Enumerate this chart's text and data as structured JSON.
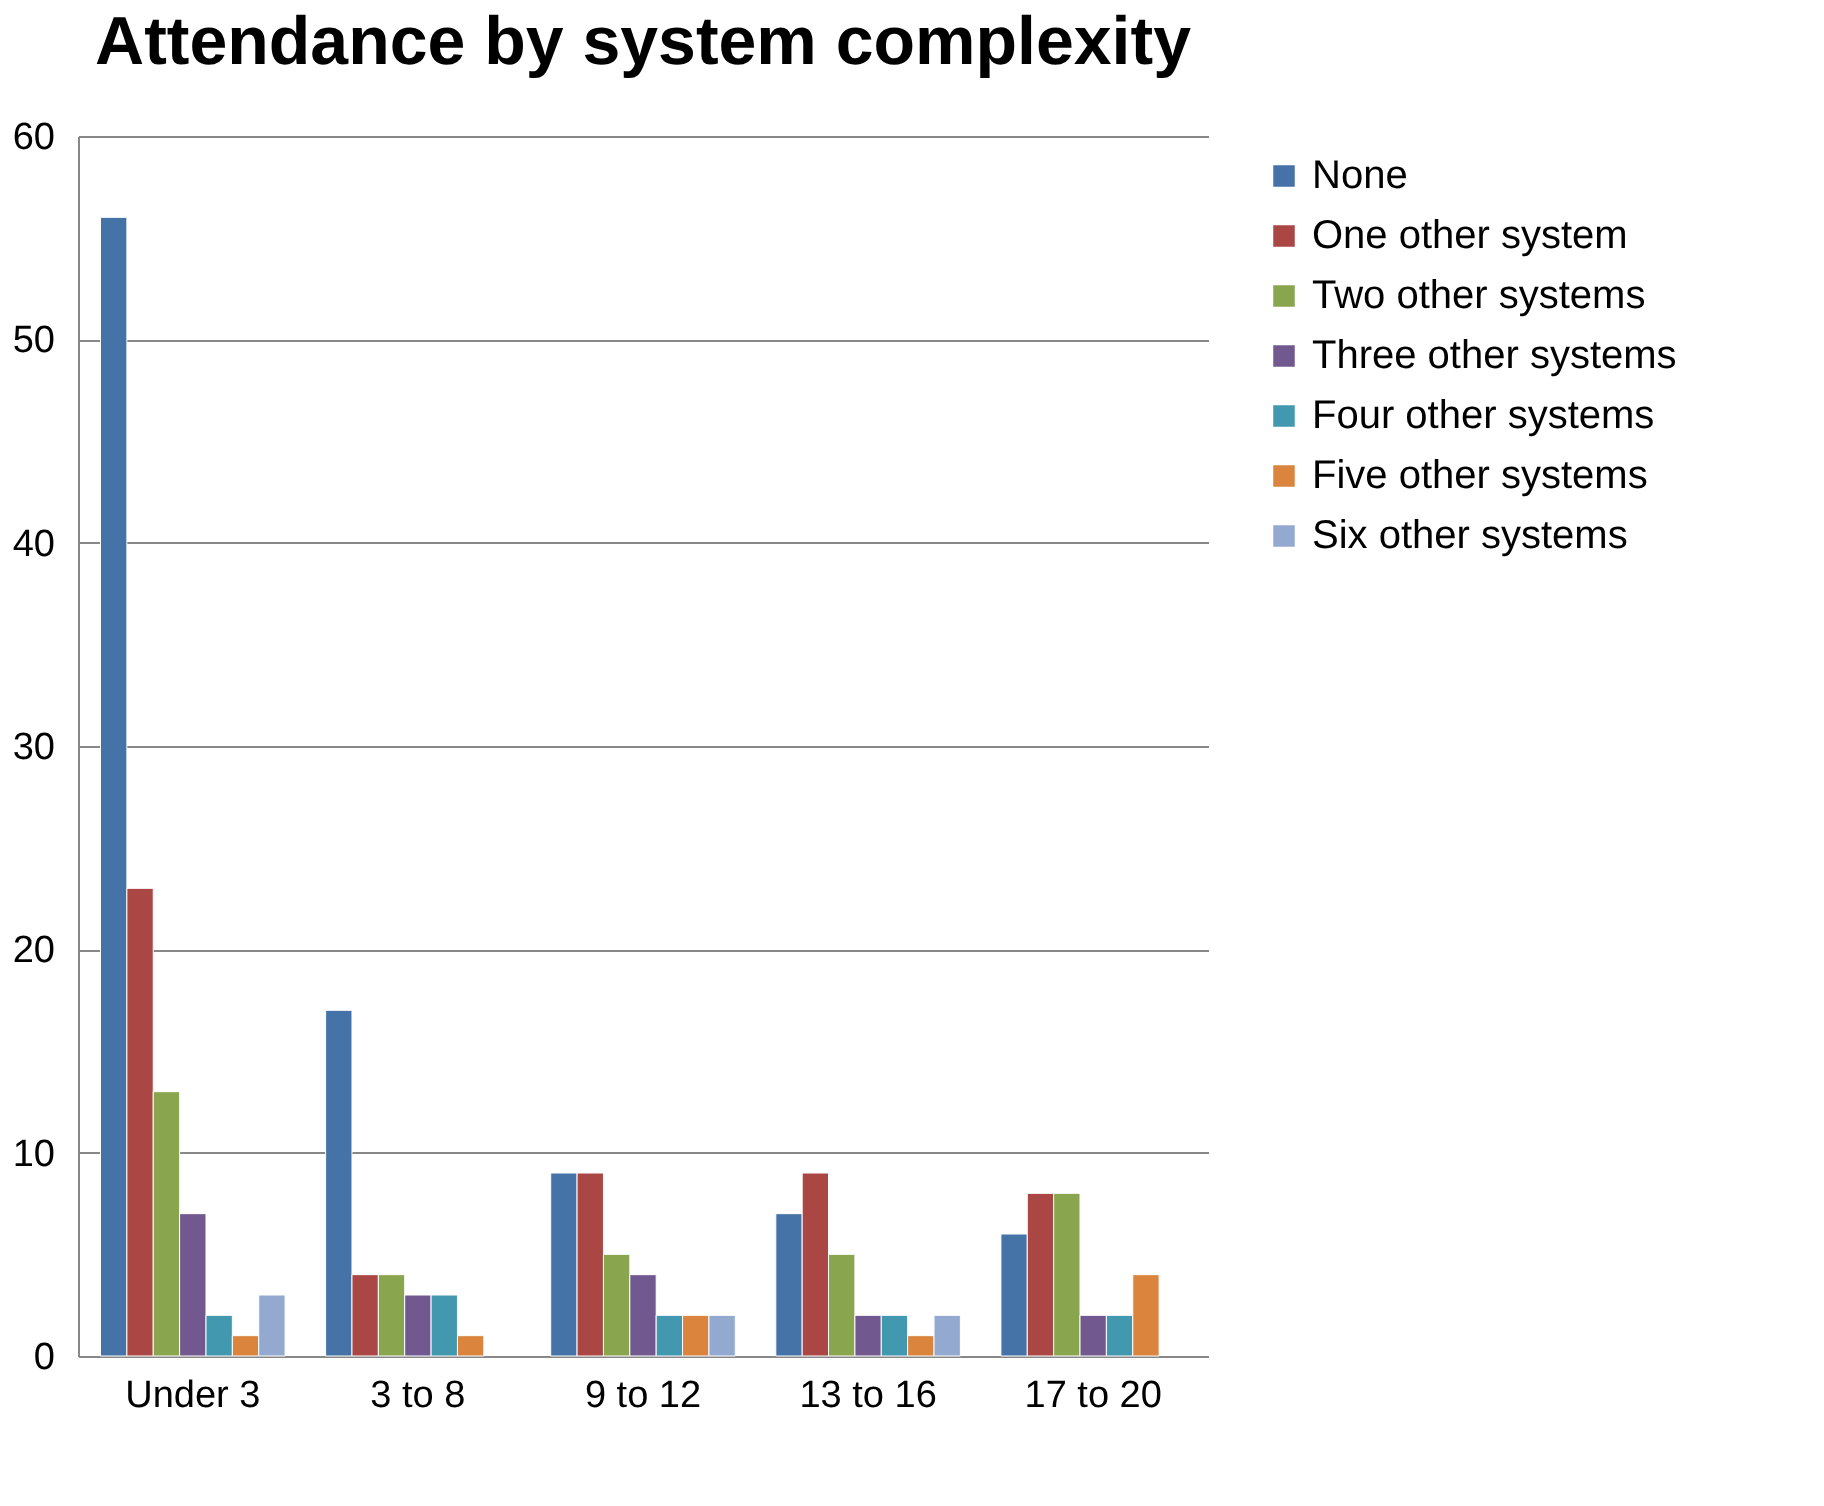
{
  "chart_data": {
    "type": "bar",
    "title": "Attendance by system complexity",
    "categories": [
      "Under 3",
      "3 to 8",
      "9 to 12",
      "13 to 16",
      "17 to 20"
    ],
    "series": [
      {
        "name": "None",
        "color": "#4572a7",
        "values": [
          56,
          17,
          9,
          7,
          6
        ]
      },
      {
        "name": "One other system",
        "color": "#aa4643",
        "values": [
          23,
          4,
          9,
          9,
          8
        ]
      },
      {
        "name": "Two other systems",
        "color": "#89a54e",
        "values": [
          13,
          4,
          5,
          5,
          8
        ]
      },
      {
        "name": "Three other systems",
        "color": "#71588f",
        "values": [
          7,
          3,
          4,
          2,
          2
        ]
      },
      {
        "name": "Four other systems",
        "color": "#4198af",
        "values": [
          2,
          3,
          2,
          2,
          2
        ]
      },
      {
        "name": "Five other systems",
        "color": "#db843d",
        "values": [
          1,
          1,
          2,
          1,
          4
        ]
      },
      {
        "name": "Six other systems",
        "color": "#93a9cf",
        "values": [
          3,
          null,
          2,
          2,
          null
        ]
      }
    ],
    "ylim": [
      0,
      60
    ],
    "yticks": [
      0,
      10,
      20,
      30,
      40,
      50,
      60
    ],
    "grid": "y",
    "legend": "right"
  }
}
